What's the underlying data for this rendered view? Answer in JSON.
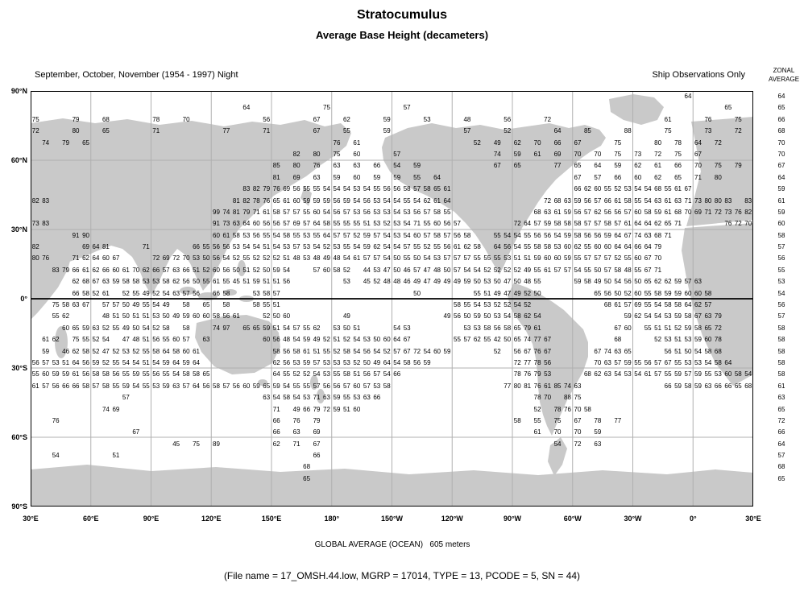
{
  "chart_data": {
    "type": "heatmap",
    "title": "Stratocumulus",
    "subtitle": "Average Base Height (decameters)",
    "season_label": "September, October, November (1954 - 1997) Night",
    "source_label": "Ship Observations Only",
    "zonal_header_line1": "ZONAL",
    "zonal_header_line2": "AVERAGE",
    "units": "decameters",
    "lat_labels": [
      "90°N",
      "60°N",
      "30°N",
      "0°",
      "30°S",
      "60°S",
      "90°S"
    ],
    "lon_labels": [
      "30°E",
      "60°E",
      "90°E",
      "120°E",
      "150°E",
      "180°",
      "150°W",
      "120°W",
      "90°W",
      "60°W",
      "30°W",
      "0°",
      "30°E"
    ],
    "grid": {
      "lon_cols": 72,
      "lat_rows": 34,
      "cell_deg": 5
    },
    "zonal_averages": [
      64,
      65,
      66,
      68,
      70,
      70,
      67,
      64,
      59,
      61,
      59,
      60,
      58,
      57,
      56,
      55,
      53,
      54,
      56,
      57,
      58,
      58,
      58,
      58,
      58,
      61,
      63,
      65,
      72,
      66,
      64,
      57,
      68,
      65
    ],
    "rows": [
      [
        [
          65,
          "64"
        ]
      ],
      [
        [
          21,
          "64"
        ],
        [
          29,
          "75"
        ],
        [
          37,
          "57"
        ],
        [
          69,
          "65"
        ]
      ],
      [
        [
          0,
          "75"
        ],
        [
          4,
          "79"
        ],
        [
          7,
          "68"
        ],
        [
          12,
          "78"
        ],
        [
          15,
          "70"
        ],
        [
          23,
          "56"
        ],
        [
          28,
          "67"
        ],
        [
          31,
          "62"
        ],
        [
          35,
          "59"
        ],
        [
          39,
          "53"
        ],
        [
          43,
          "48"
        ],
        [
          47,
          "56"
        ],
        [
          51,
          "72"
        ],
        [
          63,
          "61"
        ],
        [
          67,
          "76"
        ],
        [
          70,
          "75"
        ]
      ],
      [
        [
          0,
          "72"
        ],
        [
          4,
          "80"
        ],
        [
          7,
          "65"
        ],
        [
          12,
          "71"
        ],
        [
          19,
          "77"
        ],
        [
          23,
          "71"
        ],
        [
          28,
          "67"
        ],
        [
          31,
          "55"
        ],
        [
          35,
          "59"
        ],
        [
          43,
          "57"
        ],
        [
          47,
          "52"
        ],
        [
          52,
          "64"
        ],
        [
          55,
          "85"
        ],
        [
          59,
          "88"
        ],
        [
          63,
          "75"
        ],
        [
          67,
          "73"
        ],
        [
          70,
          "72"
        ]
      ],
      [
        [
          1,
          "74"
        ],
        [
          3,
          "79"
        ],
        [
          5,
          "65"
        ],
        [
          30,
          "76"
        ],
        [
          32,
          "61"
        ],
        [
          44,
          "52"
        ],
        [
          46,
          "49"
        ],
        [
          48,
          "62"
        ],
        [
          50,
          "70"
        ],
        [
          52,
          "66"
        ],
        [
          54,
          "67"
        ],
        [
          58,
          "75"
        ],
        [
          62,
          "80"
        ],
        [
          64,
          "78"
        ],
        [
          66,
          "64"
        ],
        [
          68,
          "72"
        ]
      ],
      [
        [
          26,
          "82"
        ],
        [
          28,
          "80"
        ],
        [
          30,
          "75"
        ],
        [
          32,
          "60"
        ],
        [
          36,
          "57"
        ],
        [
          46,
          "74"
        ],
        [
          48,
          "59"
        ],
        [
          50,
          "61"
        ],
        [
          52,
          "69"
        ],
        [
          54,
          "70"
        ],
        [
          56,
          "70"
        ],
        [
          58,
          "75"
        ],
        [
          60,
          "73"
        ],
        [
          62,
          "72"
        ],
        [
          64,
          "75"
        ],
        [
          66,
          "67"
        ]
      ],
      [
        [
          24,
          "85"
        ],
        [
          26,
          "80"
        ],
        [
          28,
          "76"
        ],
        [
          30,
          "63"
        ],
        [
          32,
          "63"
        ],
        [
          34,
          "66"
        ],
        [
          36,
          "54"
        ],
        [
          38,
          "59"
        ],
        [
          46,
          "67"
        ],
        [
          48,
          "65"
        ],
        [
          52,
          "77"
        ],
        [
          54,
          "65"
        ],
        [
          56,
          "64"
        ],
        [
          58,
          "59"
        ],
        [
          60,
          "62"
        ],
        [
          62,
          "61"
        ],
        [
          64,
          "66"
        ],
        [
          66,
          "70"
        ],
        [
          68,
          "75"
        ],
        [
          70,
          "79"
        ]
      ],
      [
        [
          24,
          "81"
        ],
        [
          26,
          "69"
        ],
        [
          28,
          "63"
        ],
        [
          30,
          "59"
        ],
        [
          32,
          "60"
        ],
        [
          34,
          "59"
        ],
        [
          36,
          "59"
        ],
        [
          38,
          "55"
        ],
        [
          40,
          "64"
        ],
        [
          54,
          "67"
        ],
        [
          56,
          "57"
        ],
        [
          58,
          "66"
        ],
        [
          60,
          "60"
        ],
        [
          62,
          "62"
        ],
        [
          64,
          "65"
        ],
        [
          66,
          "71"
        ],
        [
          68,
          "80"
        ]
      ],
      [
        [
          21,
          "83 82 79 76 69 56 55 55 54 54 54 53 54 55 56 56 58 57 58 65 61"
        ],
        [
          54,
          "66 62 60 55 52 53 54 54 68 55 61 67"
        ]
      ],
      [
        [
          0,
          "82 83"
        ],
        [
          20,
          "81 82 78 76 65 61 60 59 59 59 56 59 54 56 53 54 54 55 54 62 61 64"
        ],
        [
          51,
          "72 68 63 59 56 57 66 61 58 55 54 63 61 63 71 73 80 80 83"
        ],
        [
          71,
          "83"
        ]
      ],
      [
        [
          18,
          "99 74 81 79 71 61 58 57 57 55 60 54 56 57 53 56 53 53 54 53 56 57 58 55"
        ],
        [
          50,
          "68 63 61 59 56 57 62 56 56 57 60 58 59 61 68 70 69 71 72 73 76 82"
        ]
      ],
      [
        [
          0,
          "73 83"
        ],
        [
          18,
          "91 73 63 64 60 56 56 57 69 57 64 58 55 55 55 51 53 52 53 54 71 55 60 56 57"
        ],
        [
          48,
          "72 64 57 59 58 58 58 57 57 58 57 61 64 64 62 65 71"
        ],
        [
          69,
          "76 72 70"
        ]
      ],
      [
        [
          4,
          "91 90"
        ],
        [
          18,
          "60 61 58 53 56 55 54 58 55 53 55 64 57 57 52 59 57 54 53 54 60 57 58 57 56 58"
        ],
        [
          46,
          "55 54 54 55 56 56 54 59 58 56 56 59 64 67 74 63 68 71"
        ]
      ],
      [
        [
          0,
          "82"
        ],
        [
          5,
          "69 64 81"
        ],
        [
          11,
          "71"
        ],
        [
          16,
          "66 55 56 56 53 54 54 51 54 53 57 53 54 52 53 55 54 59 62 54 54 57 55 52 55 56 61 62 58"
        ],
        [
          46,
          "64 56 54 55 58 58 53 60 62 55 60 60 64 64 66 64 79"
        ]
      ],
      [
        [
          0,
          "80 76"
        ],
        [
          4,
          "71 62 64 60 67"
        ],
        [
          12,
          "72 69 72 70 53 50 56 54 52 55 52 52 52 51 48 53 48 49 48 54 61 57 57 54 50 55 50 54 53 57 57 57 55 55 55 53 51 51 59 60 60 59 55 57 57 57 52 55 60 67 70"
        ]
      ],
      [
        [
          2,
          "83 79 66 61 62 66 60 61 70 62 66 57 63 66 51 52 60 56 50 51 52 50 59 54"
        ],
        [
          28,
          "57 60 58 52"
        ],
        [
          33,
          "44 53 47 50 46 57 47 48 50 57 54 54 52 52 52 52 49 55 61 57 57 54 55 50 57 58 48 55 67 71"
        ]
      ],
      [
        [
          4,
          "62 68 67 63 59 58 58 53 53 58 62 56 50 55 61 55 45 51 59 51 51 56"
        ],
        [
          31,
          "53"
        ],
        [
          33,
          "45 52 48 48 46 49 47 49 49 49 59 50 53 50 47 50 48 55"
        ],
        [
          54,
          "59 58 49 50 54 56 50 65 62 62 59 57 63"
        ]
      ],
      [
        [
          4,
          "66 58 52 61"
        ],
        [
          9,
          "52 55 49 52 54 63 57 56"
        ],
        [
          18,
          "66 58"
        ],
        [
          22,
          "53 58 57"
        ],
        [
          38,
          "50"
        ],
        [
          44,
          "55 51 49 47 49 52 50"
        ],
        [
          56,
          "65 56 50 52 60 55 58 59 59 60 60 58"
        ]
      ],
      [
        [
          2,
          "75 58 63 67"
        ],
        [
          7,
          "57 57 50 49 55 54 49"
        ],
        [
          15,
          "58"
        ],
        [
          17,
          "65"
        ],
        [
          19,
          "58"
        ],
        [
          22,
          "58 55 51"
        ],
        [
          42,
          "58 55 54 53 52 52 54 52"
        ],
        [
          57,
          "68 61 57 69 55 54 58 58 64 62 57"
        ]
      ],
      [
        [
          2,
          "55 62"
        ],
        [
          7,
          "48 51 50 51 51 53 50 49 59 60 60 58 56 61"
        ],
        [
          23,
          "52 50 60"
        ],
        [
          31,
          "49"
        ],
        [
          41,
          "49 56 50 59 50 53 54 58 62 54"
        ],
        [
          59,
          "59 62 54 54 53 59 58 67 63 79"
        ]
      ],
      [
        [
          3,
          "60 65 59 63 52 55 49 50 54 52 58"
        ],
        [
          15,
          "58"
        ],
        [
          18,
          "74 97"
        ],
        [
          21,
          "65 65 59 51 54 57 55 62"
        ],
        [
          30,
          "53 50 51"
        ],
        [
          36,
          "54 53"
        ],
        [
          43,
          "53 53 58 56 58 65 79 61"
        ],
        [
          58,
          "67 60"
        ],
        [
          61,
          "55 51 51 52 59 58 65 72"
        ]
      ],
      [
        [
          1,
          "61 62"
        ],
        [
          4,
          "75 55 52 54"
        ],
        [
          9,
          "47 48 51 56 55 60 57"
        ],
        [
          17,
          "63"
        ],
        [
          23,
          "60 56 48 54 59 49 52 51 52 54 53 50 60 64 67"
        ],
        [
          42,
          "55 57 62 55 42 50 65 74 77 67"
        ],
        [
          58,
          "68"
        ],
        [
          62,
          "52 53 51 53 59 60 78"
        ]
      ],
      [
        [
          1,
          "59"
        ],
        [
          3,
          "46 62 58 52 47 52 53 52 55 58 64 58 60 61"
        ],
        [
          24,
          "58 56 58 61 51 55 52 58 54 56 54 52 57 67 72 54 60 59"
        ],
        [
          46,
          "52"
        ],
        [
          48,
          "56 67 76 67"
        ],
        [
          56,
          "67 74 63 65"
        ],
        [
          63,
          "56 51 50 54 58 68"
        ]
      ],
      [
        [
          0,
          "56 57 53 51 64 56 59 52 55 54 54 51 54 59 64 59 64"
        ],
        [
          24,
          "62 56 53 59 57 53 53 53 52 50 49 64 54 58 56 59"
        ],
        [
          48,
          "72 77 78 56"
        ],
        [
          56,
          "70 63 57 59 55 56 57 67 55 53 53 54 58 64"
        ]
      ],
      [
        [
          0,
          "55 60 59 59 61 56 58 58 56 55 59 55 56 55 54 58 58 65"
        ],
        [
          24,
          "64 55 52 52 54 53 55 58 51 56 57 54 66"
        ],
        [
          48,
          "78 76 79 53"
        ],
        [
          55,
          "68 62 63 54 53 54 61 57 55 59 57 59 55 53 60 58 54"
        ]
      ],
      [
        [
          0,
          "61 57 56 66 66 58 57 58 55 59 54 55 53 59 63 57 64 56 58 57 56 60 59 65 59 54 55 55 57 56 56 57 60 57 53 58"
        ],
        [
          47,
          "77 80 81 76 61 85 74 63"
        ],
        [
          63,
          "66 59 58 59 63 66 66 65 68"
        ]
      ],
      [
        [
          9,
          "57"
        ],
        [
          23,
          "63 54 58 54 53 71 63 59 55 53 63 66"
        ],
        [
          50,
          "78 70"
        ],
        [
          53,
          "88 75"
        ]
      ],
      [
        [
          7,
          "74 69"
        ],
        [
          24,
          "71"
        ],
        [
          26,
          "49 66 79 72 59 51 60"
        ],
        [
          50,
          "52"
        ],
        [
          52,
          "78 76 70 58"
        ]
      ],
      [
        [
          2,
          "76"
        ],
        [
          24,
          "66"
        ],
        [
          26,
          "76"
        ],
        [
          28,
          "79"
        ],
        [
          48,
          "58"
        ],
        [
          50,
          "55"
        ],
        [
          52,
          "75"
        ],
        [
          54,
          "67"
        ],
        [
          56,
          "78"
        ],
        [
          58,
          "77"
        ]
      ],
      [
        [
          10,
          "67"
        ],
        [
          24,
          "66"
        ],
        [
          26,
          "63"
        ],
        [
          28,
          "69"
        ],
        [
          50,
          "61"
        ],
        [
          52,
          "70"
        ],
        [
          54,
          "70"
        ],
        [
          56,
          "59"
        ]
      ],
      [
        [
          14,
          "45"
        ],
        [
          16,
          "75"
        ],
        [
          18,
          "89"
        ],
        [
          24,
          "62"
        ],
        [
          26,
          "71"
        ],
        [
          28,
          "67"
        ],
        [
          52,
          "54"
        ],
        [
          54,
          "72"
        ],
        [
          56,
          "63"
        ]
      ],
      [
        [
          2,
          "54"
        ],
        [
          8,
          "51"
        ],
        [
          28,
          "66"
        ]
      ],
      [
        [
          27,
          "68"
        ]
      ],
      [
        [
          27,
          "65"
        ]
      ]
    ],
    "global_average_label": "GLOBAL AVERAGE (OCEAN)   605 meters",
    "file_info": "(File name = 17_OMSH.44.low, MGRP = 17014, TYPE = 13, PCODE = 5, SN = 44)"
  }
}
